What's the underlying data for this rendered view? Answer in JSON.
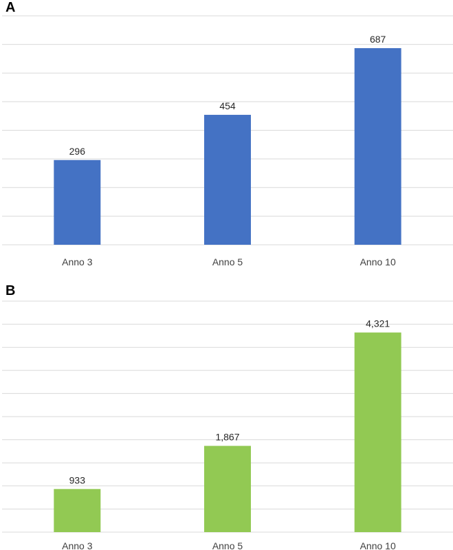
{
  "chart_data": [
    {
      "type": "bar",
      "panel_label": "A",
      "categories": [
        "Anno 3",
        "Anno 5",
        "Anno 10"
      ],
      "values": [
        296,
        454,
        687
      ],
      "value_labels": [
        "296",
        "454",
        "687"
      ],
      "ylim": [
        0,
        800
      ],
      "grid": true,
      "color": "#4472C4",
      "title": "",
      "xlabel": "",
      "ylabel": ""
    },
    {
      "type": "bar",
      "panel_label": "B",
      "categories": [
        "Anno 3",
        "Anno 5",
        "Anno 10"
      ],
      "values": [
        933,
        1867,
        4321
      ],
      "value_labels": [
        "933",
        "1,867",
        "4,321"
      ],
      "ylim": [
        0,
        5000
      ],
      "grid": true,
      "color": "#92C953",
      "title": "",
      "xlabel": "",
      "ylabel": ""
    }
  ]
}
